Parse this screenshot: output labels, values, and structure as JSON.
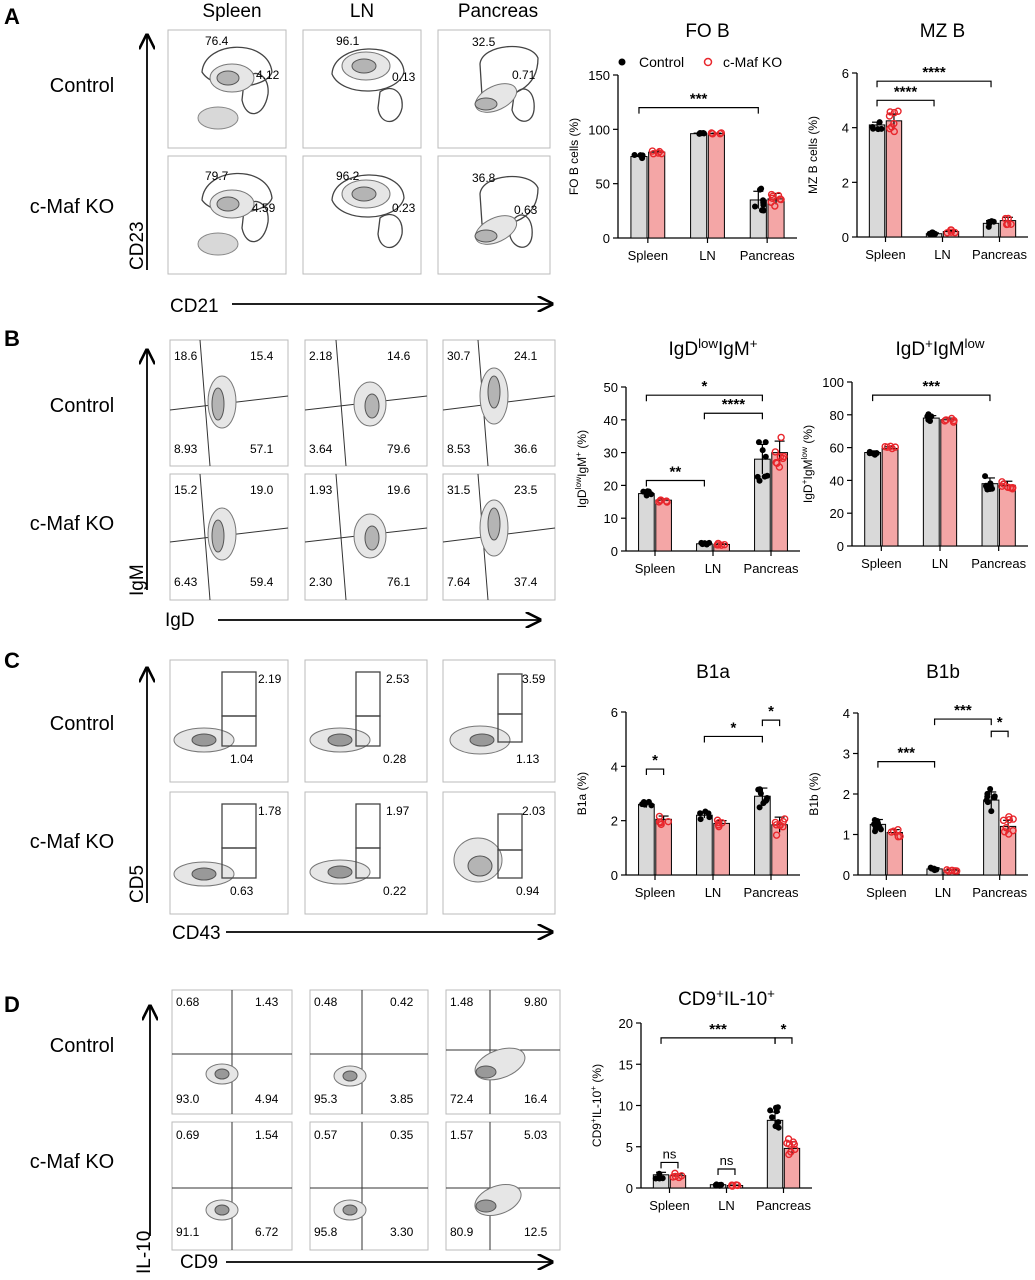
{
  "panels": [
    {
      "letter": "A",
      "columns": [
        "Spleen",
        "LN",
        "Pancreas"
      ],
      "rows": [
        "Control",
        "c-Maf KO"
      ],
      "x_axis": "CD21",
      "y_axis": "CD23",
      "plot_values": [
        [
          "76.4",
          "4.12",
          "96.1",
          "0.13",
          "32.5",
          "0.71"
        ],
        [
          "79.7",
          "4.59",
          "96.2",
          "0.23",
          "36.8",
          "0.63"
        ]
      ]
    },
    {
      "letter": "B",
      "rows": [
        "Control",
        "c-Maf KO"
      ],
      "x_axis": "IgD",
      "y_axis": "IgM",
      "plot_values": [
        [
          "18.6",
          "15.4",
          "8.93",
          "57.1",
          "2.18",
          "14.6",
          "3.64",
          "79.6",
          "30.7",
          "24.1",
          "8.53",
          "36.6"
        ],
        [
          "15.2",
          "19.0",
          "6.43",
          "59.4",
          "1.93",
          "19.6",
          "2.30",
          "76.1",
          "31.5",
          "23.5",
          "7.64",
          "37.4"
        ]
      ]
    },
    {
      "letter": "C",
      "rows": [
        "Control",
        "c-Maf KO"
      ],
      "x_axis": "CD43",
      "y_axis": "CD5",
      "plot_values": [
        [
          "2.19",
          "1.04",
          "2.53",
          "0.28",
          "3.59",
          "1.13"
        ],
        [
          "1.78",
          "0.63",
          "1.97",
          "0.22",
          "2.03",
          "0.94"
        ]
      ]
    },
    {
      "letter": "D",
      "rows": [
        "Control",
        "c-Maf KO"
      ],
      "x_axis": "CD9",
      "y_axis": "IL-10",
      "plot_values": [
        [
          "0.68",
          "1.43",
          "93.0",
          "4.94",
          "0.48",
          "0.42",
          "95.3",
          "3.85",
          "1.48",
          "9.80",
          "72.4",
          "16.4"
        ],
        [
          "0.69",
          "1.54",
          "91.1",
          "6.72",
          "0.57",
          "0.35",
          "95.8",
          "3.30",
          "1.57",
          "5.03",
          "80.9",
          "12.5"
        ]
      ]
    }
  ],
  "legend": {
    "control": "Control",
    "ko": "c-Maf KO"
  },
  "colors": {
    "control_fill": "#d9d9d9",
    "ko_fill": "#f4a6a6",
    "ko_point": "#e8262c",
    "control_point": "#000000"
  },
  "chart_data": [
    {
      "type": "bar",
      "panel": "A",
      "title": "FO B",
      "ylabel": "FO B cells (%)",
      "categories": [
        "Spleen",
        "LN",
        "Pancreas"
      ],
      "ylim": [
        0,
        150
      ],
      "yticks": [
        0,
        50,
        100,
        150
      ],
      "series": [
        {
          "name": "Control",
          "values": [
            75,
            96,
            35
          ],
          "sem": [
            1,
            0.5,
            8
          ]
        },
        {
          "name": "c-Maf KO",
          "values": [
            79,
            96,
            36
          ],
          "sem": [
            1,
            0.5,
            5
          ]
        }
      ],
      "significance": [
        {
          "label": "***",
          "from": "Spleen",
          "to": "Pancreas",
          "y": 120
        }
      ]
    },
    {
      "type": "bar",
      "panel": "A",
      "title": "MZ B",
      "ylabel": "MZ B cells (%)",
      "categories": [
        "Spleen",
        "LN",
        "Pancreas"
      ],
      "ylim": [
        0,
        6
      ],
      "yticks": [
        0,
        2,
        4,
        6
      ],
      "series": [
        {
          "name": "Control",
          "values": [
            4.1,
            0.12,
            0.5
          ],
          "sem": [
            0.1,
            0.03,
            0.1
          ]
        },
        {
          "name": "c-Maf KO",
          "values": [
            4.25,
            0.2,
            0.6
          ],
          "sem": [
            0.25,
            0.04,
            0.12
          ]
        }
      ],
      "significance": [
        {
          "label": "****",
          "from": "Spleen",
          "to": "LN",
          "y": 5.0
        },
        {
          "label": "****",
          "from": "Spleen",
          "to": "Pancreas",
          "y": 5.7
        }
      ]
    },
    {
      "type": "bar",
      "panel": "B",
      "title": "IgDlowIgM+",
      "ylabel": "IgDlowIgM+ (%)",
      "categories": [
        "Spleen",
        "LN",
        "Pancreas"
      ],
      "ylim": [
        0,
        50
      ],
      "yticks": [
        0,
        10,
        20,
        30,
        40,
        50
      ],
      "series": [
        {
          "name": "Control",
          "values": [
            17.5,
            2.2,
            28
          ],
          "sem": [
            0.5,
            0.2,
            4.5
          ]
        },
        {
          "name": "c-Maf KO",
          "values": [
            15.5,
            2.0,
            30
          ],
          "sem": [
            0.4,
            0.2,
            3.5
          ]
        }
      ],
      "significance": [
        {
          "label": "*",
          "from": "Spleen",
          "to": "Pancreas",
          "y": 47.5
        },
        {
          "label": "****",
          "from": "LN",
          "to": "Pancreas",
          "y": 42
        },
        {
          "label": "**",
          "from": "Spleen",
          "to": "LN",
          "y": 21.5
        }
      ]
    },
    {
      "type": "bar",
      "panel": "B",
      "title": "IgD+IgMlow",
      "ylabel": "IgD+IgMlow (%)",
      "categories": [
        "Spleen",
        "LN",
        "Pancreas"
      ],
      "ylim": [
        0,
        100
      ],
      "yticks": [
        0,
        20,
        40,
        60,
        80,
        100
      ],
      "series": [
        {
          "name": "Control",
          "values": [
            57,
            78,
            38
          ],
          "sem": [
            1,
            1.5,
            3.5
          ]
        },
        {
          "name": "c-Maf KO",
          "values": [
            59.5,
            77,
            37
          ],
          "sem": [
            1,
            1,
            2.5
          ]
        }
      ],
      "significance": [
        {
          "label": "***",
          "from": "Spleen",
          "to": "Pancreas",
          "y": 92
        }
      ]
    },
    {
      "type": "bar",
      "panel": "C",
      "title": "B1a",
      "ylabel": "B1a (%)",
      "categories": [
        "Spleen",
        "LN",
        "Pancreas"
      ],
      "ylim": [
        0,
        6
      ],
      "yticks": [
        0,
        2,
        4,
        6
      ],
      "series": [
        {
          "name": "Control",
          "values": [
            2.6,
            2.2,
            2.9
          ],
          "sem": [
            0.12,
            0.1,
            0.3
          ]
        },
        {
          "name": "c-Maf KO",
          "values": [
            2.05,
            1.9,
            1.85
          ],
          "sem": [
            0.12,
            0.1,
            0.28
          ]
        }
      ],
      "significance": [
        {
          "label": "*",
          "from": "Spleen-Control",
          "to": "Spleen-KO",
          "y": 3.9
        },
        {
          "label": "*",
          "from": "LN",
          "to": "Pancreas",
          "y": 5.1
        },
        {
          "label": "*",
          "from": "Pancreas-Control",
          "to": "Pancreas-KO",
          "y": 5.7
        }
      ]
    },
    {
      "type": "bar",
      "panel": "C",
      "title": "B1b",
      "ylabel": "B1b (%)",
      "categories": [
        "Spleen",
        "LN",
        "Pancreas"
      ],
      "ylim": [
        0,
        4
      ],
      "yticks": [
        0,
        1,
        2,
        3,
        4
      ],
      "series": [
        {
          "name": "Control",
          "values": [
            1.25,
            0.15,
            1.85
          ],
          "sem": [
            0.12,
            0.03,
            0.2
          ]
        },
        {
          "name": "c-Maf KO",
          "values": [
            1.05,
            0.12,
            1.2
          ],
          "sem": [
            0.07,
            0.02,
            0.15
          ]
        }
      ],
      "significance": [
        {
          "label": "***",
          "from": "Spleen",
          "to": "LN",
          "y": 2.8
        },
        {
          "label": "***",
          "from": "LN",
          "to": "Pancreas",
          "y": 3.85
        },
        {
          "label": "*",
          "from": "Pancreas-Control",
          "to": "Pancreas-KO",
          "y": 3.55
        }
      ]
    },
    {
      "type": "bar",
      "panel": "D",
      "title": "CD9+IL-10+",
      "ylabel": "CD9+IL-10+ (%)",
      "categories": [
        "Spleen",
        "LN",
        "Pancreas"
      ],
      "ylim": [
        0,
        20
      ],
      "yticks": [
        0,
        5,
        10,
        15,
        20
      ],
      "series": [
        {
          "name": "Control",
          "values": [
            1.6,
            0.4,
            8.2
          ],
          "sem": [
            0.3,
            0.1,
            1.0
          ]
        },
        {
          "name": "c-Maf KO",
          "values": [
            1.5,
            0.3,
            4.8
          ],
          "sem": [
            0.2,
            0.05,
            0.8
          ]
        }
      ],
      "significance": [
        {
          "label": "ns",
          "from": "Spleen-Control",
          "to": "Spleen-KO",
          "y": 3.1
        },
        {
          "label": "ns",
          "from": "LN-Control",
          "to": "LN-KO",
          "y": 2.3
        },
        {
          "label": "***",
          "from": "Spleen",
          "to": "Pancreas",
          "y": 18.2
        },
        {
          "label": "*",
          "from": "Pancreas-Control",
          "to": "Pancreas-KO",
          "y": 18.2
        }
      ]
    }
  ]
}
